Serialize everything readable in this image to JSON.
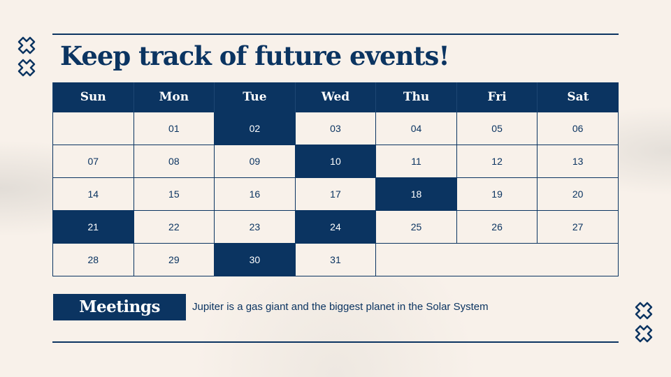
{
  "title": "Keep track of future events!",
  "days": [
    "Sun",
    "Mon",
    "Tue",
    "Wed",
    "Thu",
    "Fri",
    "Sat"
  ],
  "weeks": [
    [
      "",
      "01",
      "02",
      "03",
      "04",
      "05",
      "06"
    ],
    [
      "07",
      "08",
      "09",
      "10",
      "11",
      "12",
      "13"
    ],
    [
      "14",
      "15",
      "16",
      "17",
      "18",
      "19",
      "20"
    ],
    [
      "21",
      "22",
      "23",
      "24",
      "25",
      "26",
      "27"
    ],
    [
      "28",
      "29",
      "30",
      "31"
    ]
  ],
  "highlighted": [
    "02",
    "10",
    "18",
    "21",
    "24",
    "30"
  ],
  "legend": {
    "label": "Meetings",
    "description": "Jupiter is a gas giant and the biggest planet in the Solar System"
  },
  "colors": {
    "accent": "#0b3461",
    "background": "#f8f1ea"
  }
}
